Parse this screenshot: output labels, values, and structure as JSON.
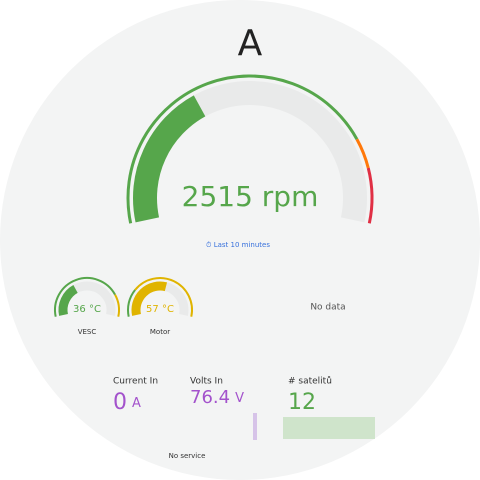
{
  "title": "A",
  "main_gauge": {
    "value": 2515,
    "value_label": "2515 rpm",
    "min": 0,
    "max": 7000,
    "thresholds": [
      {
        "from": 0,
        "color": "#56a64b"
      },
      {
        "from": 5600,
        "color": "#ff780a"
      },
      {
        "from": 6100,
        "color": "#e02f44"
      }
    ],
    "time_range": "⏱ Last 10 minutes"
  },
  "temp_gauges": [
    {
      "label": "VESC",
      "value": 36,
      "value_label": "36 °C",
      "min": 0,
      "max": 100,
      "thresholds": [
        {
          "from": 0,
          "color": "#56a64b"
        },
        {
          "from": 80,
          "color": "#e0b400"
        }
      ]
    },
    {
      "label": "Motor",
      "value": 57,
      "value_label": "57 °C",
      "min": 0,
      "max": 100,
      "thresholds": [
        {
          "from": 0,
          "color": "#56a64b"
        },
        {
          "from": 25,
          "color": "#e0b400"
        }
      ]
    }
  ],
  "no_data": "No data",
  "stats": [
    {
      "label": "Current In",
      "value": 0,
      "unit": "A",
      "color": "#a352cc"
    },
    {
      "label": "Volts In",
      "value": 76.4,
      "unit": "V",
      "color": "#a352cc"
    },
    {
      "label": "# satelitů",
      "value": 12,
      "color": "#56a64b"
    }
  ],
  "footer": "No service"
}
